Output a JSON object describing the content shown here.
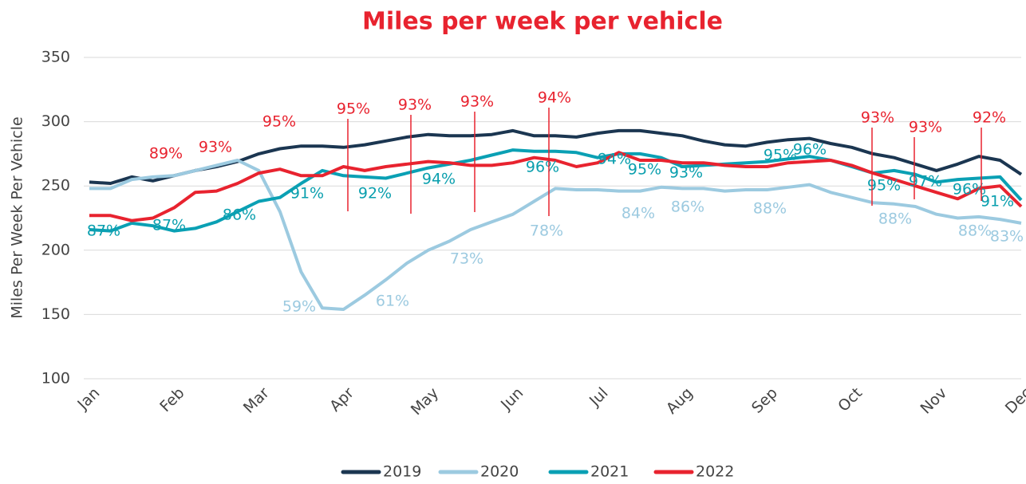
{
  "chart_data": {
    "type": "line",
    "title": "Miles per week per vehicle",
    "y_label": "Miles Per Week Per Vehicle",
    "categories": [
      "Jan",
      null,
      null,
      null,
      "Feb",
      null,
      null,
      null,
      "Mar",
      null,
      null,
      null,
      "Apr",
      null,
      null,
      null,
      "May",
      null,
      null,
      null,
      "Jun",
      null,
      null,
      null,
      "Jul",
      null,
      null,
      null,
      "Aug",
      null,
      null,
      null,
      "Sep",
      null,
      null,
      null,
      "Oct",
      null,
      null,
      null,
      "Nov",
      null,
      null,
      null,
      "Dec"
    ],
    "ylim": [
      100,
      350
    ],
    "yticks": [
      100,
      150,
      200,
      250,
      300,
      350
    ],
    "grid": true,
    "legend": "bottom",
    "series": [
      {
        "name": "2019",
        "color": "#1b3651",
        "values": [
          253,
          252,
          257,
          254,
          258,
          262,
          265,
          269,
          275,
          279,
          281,
          281,
          280,
          282,
          285,
          288,
          290,
          289,
          289,
          290,
          293,
          289,
          289,
          288,
          291,
          293,
          293,
          291,
          289,
          285,
          282,
          281,
          284,
          286,
          287,
          283,
          280,
          275,
          272,
          267,
          262,
          267,
          273,
          270,
          259
        ],
        "annotations": []
      },
      {
        "name": "2020",
        "color": "#9ccae0",
        "values": [
          248,
          248,
          255,
          257,
          258,
          262,
          266,
          270,
          262,
          230,
          183,
          155,
          154,
          165,
          177,
          190,
          200,
          207,
          216,
          222,
          228,
          238,
          248,
          247,
          247,
          246,
          246,
          249,
          248,
          248,
          246,
          247,
          247,
          249,
          251,
          245,
          241,
          237,
          236,
          234,
          228,
          225,
          226,
          224,
          221
        ],
        "annotations": [
          "59%",
          "61%",
          "73%",
          "78%",
          "84%",
          "86%",
          "88%",
          "88%",
          "88%",
          "83%"
        ]
      },
      {
        "name": "2021",
        "color": "#0aa0b4",
        "values": [
          216,
          215,
          221,
          219,
          215,
          217,
          222,
          230,
          238,
          241,
          252,
          262,
          258,
          257,
          256,
          260,
          264,
          267,
          270,
          274,
          278,
          277,
          277,
          276,
          272,
          275,
          275,
          272,
          265,
          266,
          267,
          268,
          269,
          271,
          273,
          270,
          265,
          260,
          262,
          259,
          253,
          255,
          256,
          257,
          239
        ],
        "annotations": [
          "87%",
          "87%",
          "86%",
          "91%",
          "92%",
          "94%",
          "96%",
          "94%",
          "95%",
          "93%",
          "95%",
          "96%",
          "95%",
          "97%",
          "96%",
          "91%"
        ]
      },
      {
        "name": "2022",
        "color": "#e8232f",
        "values": [
          227,
          227,
          223,
          225,
          233,
          245,
          246,
          252,
          260,
          263,
          258,
          258,
          265,
          262,
          265,
          267,
          269,
          268,
          266,
          266,
          268,
          272,
          270,
          265,
          268,
          276,
          270,
          270,
          268,
          268,
          266,
          265,
          265,
          268,
          269,
          270,
          266,
          260,
          255,
          250,
          245,
          240,
          248,
          250,
          234
        ],
        "annotations": [
          "89%",
          "93%",
          "95%",
          "95%",
          "93%",
          "93%",
          "94%",
          "93%",
          "93%",
          "92%"
        ]
      }
    ]
  }
}
